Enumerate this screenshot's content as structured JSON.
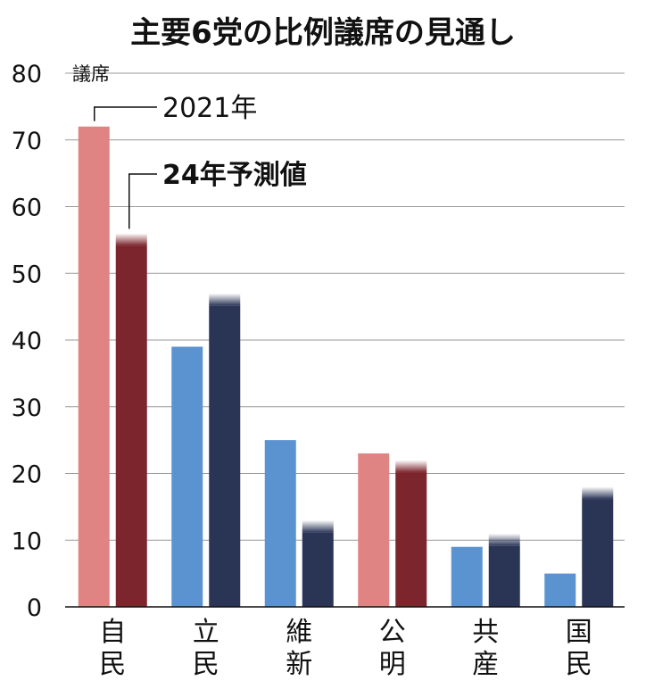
{
  "chart_data": {
    "type": "bar",
    "title": "主要6党の比例議席の見通し",
    "ylabel": "議席",
    "xlabel": "",
    "ylim": [
      0,
      80
    ],
    "yticks": [
      0,
      10,
      20,
      30,
      40,
      50,
      60,
      70,
      80
    ],
    "grid": true,
    "categories": [
      "自民",
      "立民",
      "維新",
      "公明",
      "共産",
      "国民"
    ],
    "series": [
      {
        "name": "2021年",
        "values": [
          72,
          39,
          25,
          23,
          9,
          5
        ]
      },
      {
        "name": "24年予測値",
        "values": [
          56,
          47,
          13,
          22,
          11,
          18
        ]
      }
    ],
    "colors": {
      "ruling_2021": "#df8482",
      "ruling_2024": "#7c252c",
      "opposition_2021": "#5b93d1",
      "opposition_2024": "#2a3556"
    },
    "ruling_parties": [
      "自民",
      "公明"
    ]
  }
}
